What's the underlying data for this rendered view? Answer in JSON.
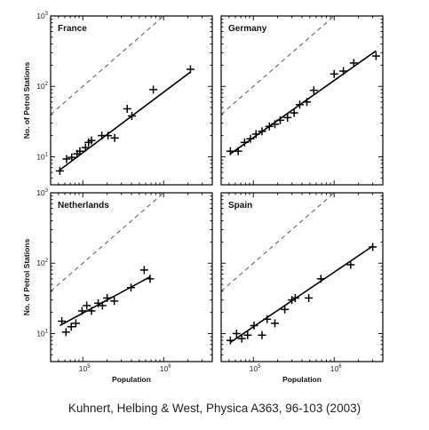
{
  "caption": "Kuhnert, Helbing & West, Physica A363, 96-103 (2003)",
  "chart_data": {
    "type": "scatter",
    "scale": "log-log",
    "xlabel": "Population",
    "ylabel": "No. of Petrol Stations",
    "xlim": [
      40000,
      4000000
    ],
    "ylim": [
      4,
      1000
    ],
    "x_ticks": [
      {
        "value": 100000,
        "base": "10",
        "exp": "5"
      },
      {
        "value": 1000000,
        "base": "10",
        "exp": "6"
      }
    ],
    "y_ticks": [
      {
        "value": 10,
        "base": "10",
        "exp": "1"
      },
      {
        "value": 100,
        "base": "10",
        "exp": "2"
      },
      {
        "value": 1000,
        "base": "10",
        "exp": "3"
      }
    ],
    "reference_line": "y = x / 1000 (dashed)",
    "panels": [
      {
        "title": "France",
        "points": [
          [
            52000,
            6.3
          ],
          [
            63000,
            9.3
          ],
          [
            73000,
            9.8
          ],
          [
            85000,
            11
          ],
          [
            92000,
            12
          ],
          [
            108000,
            13.5
          ],
          [
            118000,
            16
          ],
          [
            128000,
            17
          ],
          [
            172000,
            20
          ],
          [
            205000,
            20
          ],
          [
            248000,
            18.5
          ],
          [
            355000,
            48
          ],
          [
            405000,
            38
          ],
          [
            745000,
            90
          ],
          [
            2150000,
            175
          ]
        ],
        "fit": [
          [
            52000,
            6.5
          ],
          [
            2150000,
            160
          ]
        ]
      },
      {
        "title": "Germany",
        "points": [
          [
            52000,
            12
          ],
          [
            65000,
            12
          ],
          [
            78000,
            16
          ],
          [
            92000,
            18
          ],
          [
            108000,
            21
          ],
          [
            128000,
            23
          ],
          [
            158000,
            27
          ],
          [
            185000,
            29
          ],
          [
            215000,
            33
          ],
          [
            265000,
            36
          ],
          [
            320000,
            42
          ],
          [
            375000,
            55
          ],
          [
            460000,
            60
          ],
          [
            560000,
            88
          ],
          [
            1000000,
            150
          ],
          [
            1300000,
            165
          ],
          [
            1750000,
            215
          ],
          [
            3300000,
            270
          ]
        ],
        "fit": [
          [
            52000,
            11
          ],
          [
            3300000,
            320
          ]
        ]
      },
      {
        "title": "Netherlands",
        "points": [
          [
            55000,
            15
          ],
          [
            62000,
            10.5
          ],
          [
            72000,
            12.5
          ],
          [
            82000,
            14
          ],
          [
            98000,
            21
          ],
          [
            112000,
            25
          ],
          [
            128000,
            21
          ],
          [
            155000,
            27
          ],
          [
            175000,
            25
          ],
          [
            200000,
            32
          ],
          [
            245000,
            29
          ],
          [
            395000,
            45
          ],
          [
            575000,
            80
          ],
          [
            680000,
            60
          ]
        ],
        "fit": [
          [
            52000,
            13
          ],
          [
            680000,
            64
          ]
        ]
      },
      {
        "title": "Spain",
        "points": [
          [
            52000,
            8
          ],
          [
            62000,
            10
          ],
          [
            72000,
            8.5
          ],
          [
            85000,
            9.5
          ],
          [
            102000,
            13
          ],
          [
            128000,
            9.5
          ],
          [
            148000,
            16
          ],
          [
            185000,
            14
          ],
          [
            245000,
            22
          ],
          [
            300000,
            30
          ],
          [
            330000,
            32
          ],
          [
            485000,
            32
          ],
          [
            685000,
            60
          ],
          [
            1600000,
            95
          ],
          [
            3000000,
            170
          ]
        ],
        "fit": [
          [
            52000,
            7.5
          ],
          [
            3000000,
            175
          ]
        ]
      }
    ]
  }
}
